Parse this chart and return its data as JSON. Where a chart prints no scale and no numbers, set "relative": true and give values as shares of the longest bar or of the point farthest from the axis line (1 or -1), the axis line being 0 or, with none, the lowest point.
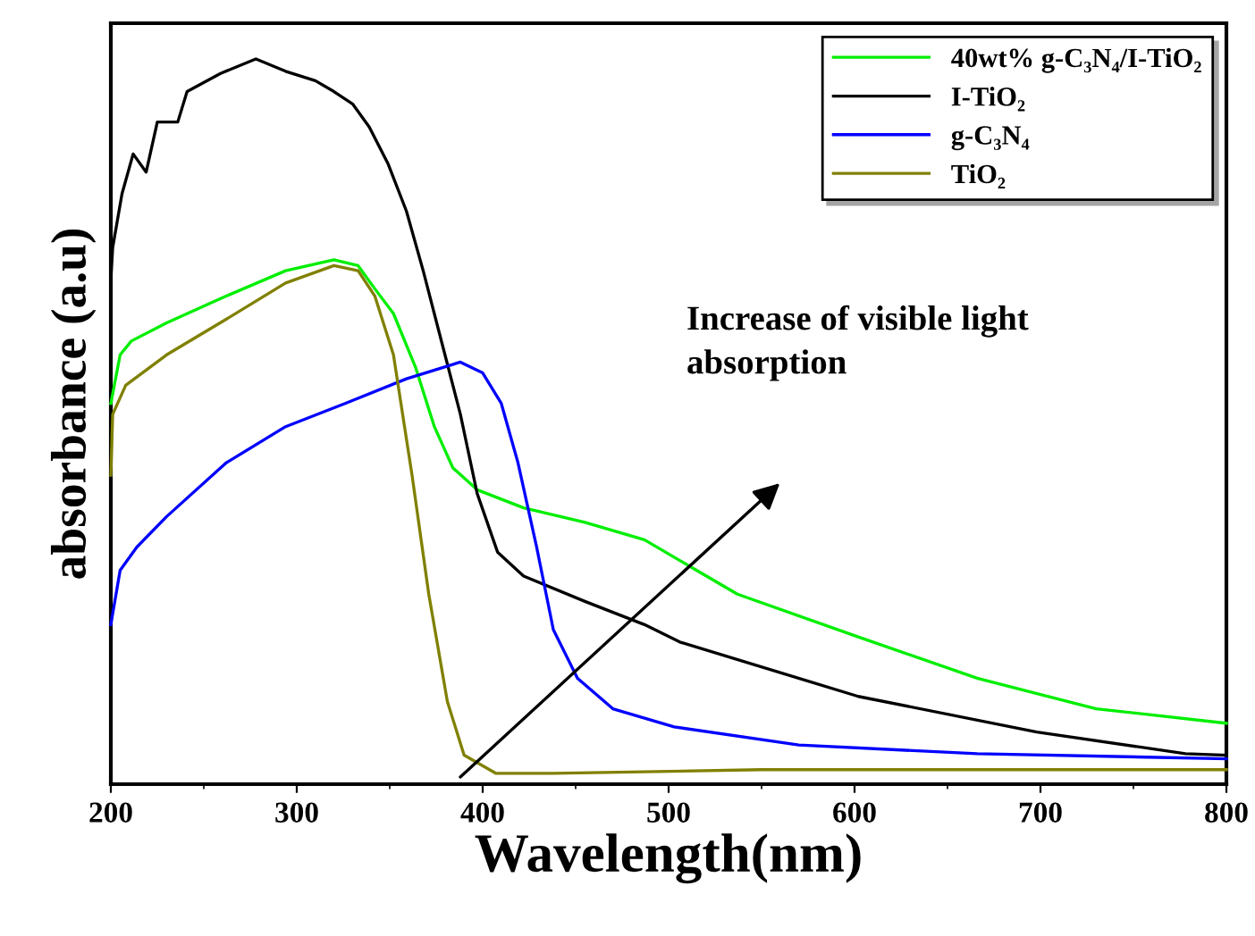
{
  "chart_data": {
    "type": "line",
    "xlabel": "Wavelength(nm)",
    "ylabel": "absorbance (a.u)",
    "relative": true,
    "tick_labels": "x",
    "legend": "top right",
    "grid": false,
    "marker": "none",
    "line_style": "solid",
    "xlim": [
      200,
      800
    ],
    "xticks": [
      200,
      {
        "value": 250,
        "label": null
      },
      300,
      {
        "value": 350,
        "label": null
      },
      400,
      {
        "value": 450,
        "label": null
      },
      500,
      {
        "value": 550,
        "label": null
      },
      600,
      {
        "value": 650,
        "label": null
      },
      700,
      {
        "value": 750,
        "label": null
      },
      800
    ],
    "series": [
      {
        "name": "40wt% g-C₃N₄/I-TiO₂",
        "color": "#00ee00",
        "x": [
          200,
          205,
          211,
          230,
          262,
          294,
          320,
          333,
          342,
          352,
          364,
          374,
          384,
          397,
          422,
          455,
          487,
          515,
          537,
          602,
          666,
          730,
          800
        ],
        "values": [
          0.525,
          0.592,
          0.611,
          0.636,
          0.673,
          0.708,
          0.723,
          0.715,
          0.683,
          0.649,
          0.574,
          0.493,
          0.436,
          0.406,
          0.381,
          0.361,
          0.337,
          0.295,
          0.262,
          0.203,
          0.146,
          0.104,
          0.084
        ]
      },
      {
        "name": "I-TiO₂",
        "color": "#000000",
        "x": [
          200,
          201,
          206,
          212,
          219,
          225,
          236,
          241,
          259,
          278,
          294,
          310,
          320,
          330,
          339,
          349,
          359,
          368,
          378,
          388,
          397,
          408,
          422,
          455,
          487,
          506,
          602,
          698,
          778,
          800
        ],
        "values": [
          0.696,
          0.74,
          0.814,
          0.869,
          0.844,
          0.913,
          0.913,
          0.955,
          0.98,
          1.0,
          0.983,
          0.97,
          0.955,
          0.938,
          0.906,
          0.856,
          0.79,
          0.708,
          0.609,
          0.51,
          0.401,
          0.32,
          0.287,
          0.252,
          0.22,
          0.196,
          0.121,
          0.072,
          0.042,
          0.04
        ]
      },
      {
        "name": "g-C₃N₄",
        "color": "#0000ff",
        "x": [
          200,
          205,
          214,
          230,
          262,
          294,
          326,
          359,
          378,
          388,
          400,
          410,
          419,
          429,
          438,
          451,
          470,
          503,
          570,
          666,
          800
        ],
        "values": [
          0.22,
          0.295,
          0.327,
          0.369,
          0.443,
          0.493,
          0.525,
          0.559,
          0.574,
          0.582,
          0.567,
          0.525,
          0.443,
          0.327,
          0.213,
          0.146,
          0.104,
          0.079,
          0.054,
          0.042,
          0.035
        ]
      },
      {
        "name": "TiO₂",
        "color": "#808000",
        "x": [
          200,
          201,
          208,
          230,
          262,
          294,
          320,
          333,
          342,
          352,
          362,
          371,
          381,
          390,
          407,
          438,
          550,
          800
        ],
        "values": [
          0.426,
          0.51,
          0.55,
          0.592,
          0.641,
          0.691,
          0.715,
          0.708,
          0.673,
          0.592,
          0.426,
          0.262,
          0.114,
          0.04,
          0.015,
          0.015,
          0.02,
          0.02
        ]
      }
    ],
    "annotations": [
      "Increase of visible light\nabsorption"
    ]
  }
}
